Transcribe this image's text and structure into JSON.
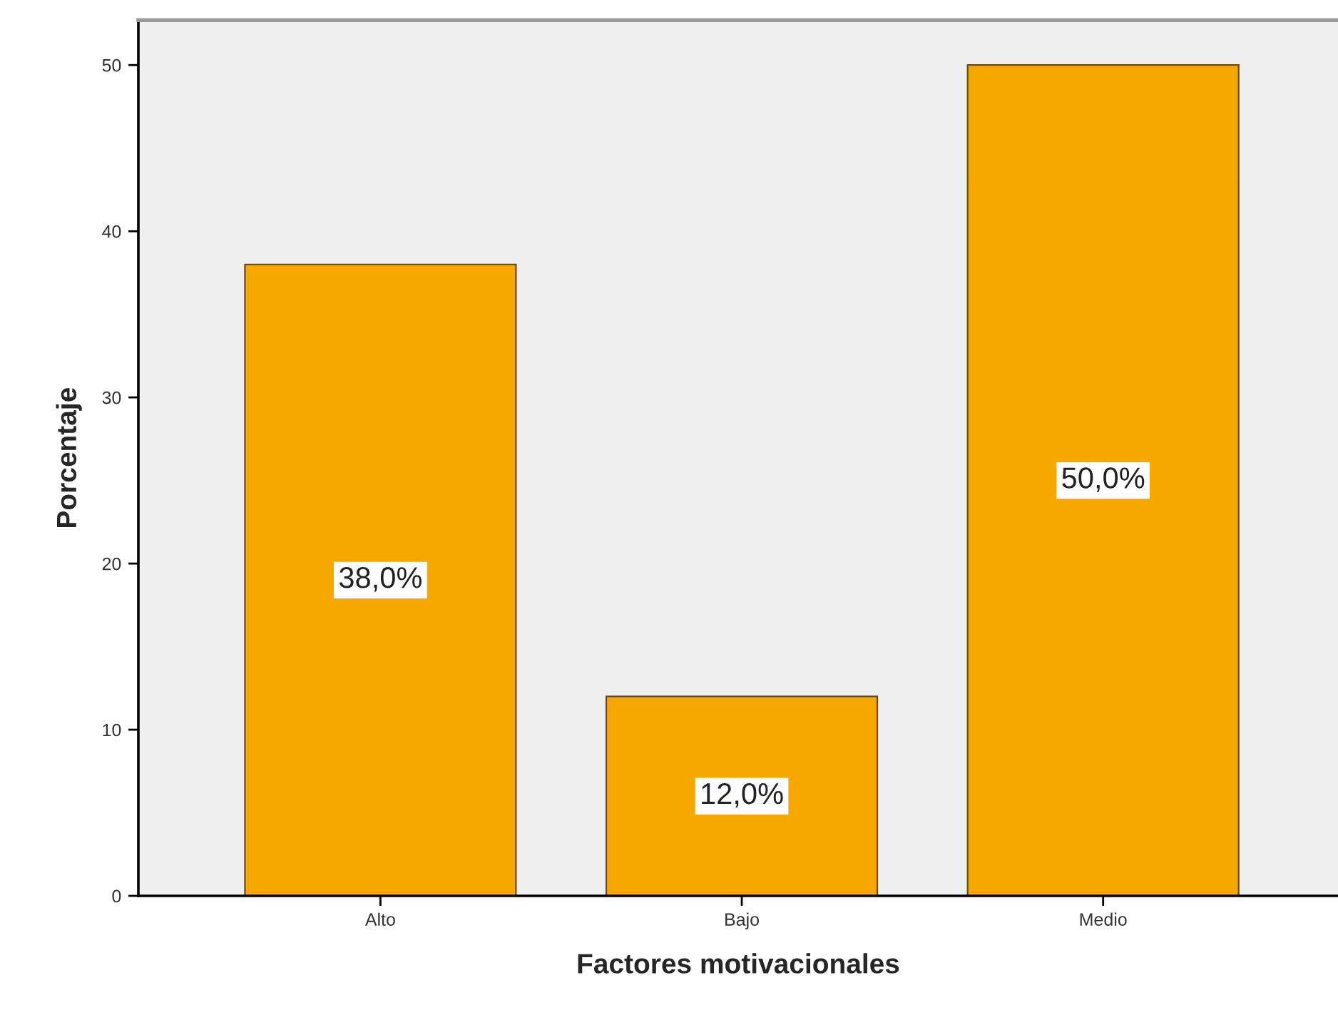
{
  "chart_data": {
    "type": "bar",
    "xlabel": "Factores motivacionales",
    "ylabel": "Porcentaje",
    "categories": [
      "Alto",
      "Bajo",
      "Medio"
    ],
    "values": [
      38,
      12,
      50
    ],
    "color": "#f7a800",
    "value_labels": [
      "38,0%",
      "12,0%",
      "50,0%"
    ],
    "ylim": [
      0,
      52.7
    ],
    "yticks": [
      0,
      10,
      20,
      30,
      40,
      50
    ],
    "grid": false,
    "legend": false
  }
}
